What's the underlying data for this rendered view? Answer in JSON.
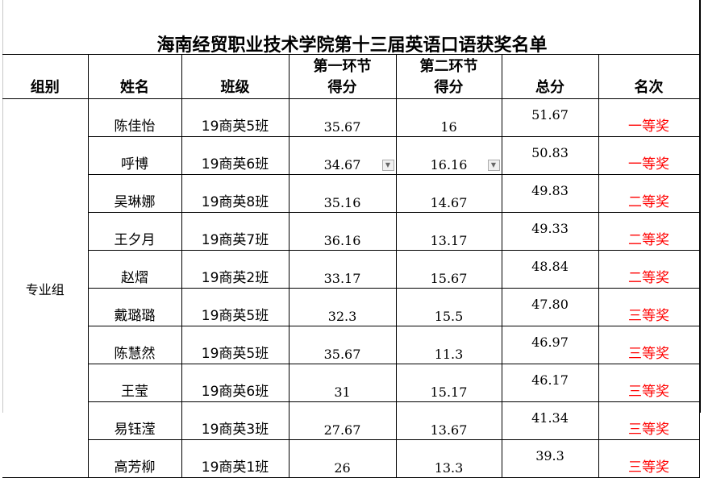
{
  "title": "海南经贸职业技术学院第十三届英语口语获奖名单",
  "headers": {
    "group": "组别",
    "name": "姓名",
    "class": "班级",
    "round1_line1": "第一环节",
    "round1_line2": "得分",
    "round2_line1": "第二环节",
    "round2_line2": "得分",
    "total": "总分",
    "rank": "名次"
  },
  "group": "专业组",
  "rank_color": "#ff0000",
  "rows": [
    {
      "name": "陈佳怡",
      "class": "19商英5班",
      "r1": "35.67",
      "r2": "16",
      "total": "51.67",
      "rank": "一等奖"
    },
    {
      "name": "呼博",
      "class": "19商英6班",
      "r1": "34.67",
      "r2": "16.16",
      "total": "50.83",
      "rank": "一等奖"
    },
    {
      "name": "吴琳娜",
      "class": "19商英8班",
      "r1": "35.16",
      "r2": "14.67",
      "total": "49.83",
      "rank": "二等奖"
    },
    {
      "name": "王夕月",
      "class": "19商英7班",
      "r1": "36.16",
      "r2": "13.17",
      "total": "49.33",
      "rank": "二等奖"
    },
    {
      "name": "赵熠",
      "class": "19商英2班",
      "r1": "33.17",
      "r2": "15.67",
      "total": "48.84",
      "rank": "二等奖"
    },
    {
      "name": "戴璐璐",
      "class": "19商英5班",
      "r1": "32.3",
      "r2": "15.5",
      "total": "47.80",
      "rank": "三等奖"
    },
    {
      "name": "陈慧然",
      "class": "19商英5班",
      "r1": "35.67",
      "r2": "11.3",
      "total": "46.97",
      "rank": "三等奖"
    },
    {
      "name": "王莹",
      "class": "19商英6班",
      "r1": "31",
      "r2": "15.17",
      "total": "46.17",
      "rank": "三等奖"
    },
    {
      "name": "易钰滢",
      "class": "19商英3班",
      "r1": "27.67",
      "r2": "13.67",
      "total": "41.34",
      "rank": "三等奖"
    },
    {
      "name": "高芳柳",
      "class": "19商英1班",
      "r1": "26",
      "r2": "13.3",
      "total": "39.3",
      "rank": "三等奖"
    }
  ]
}
